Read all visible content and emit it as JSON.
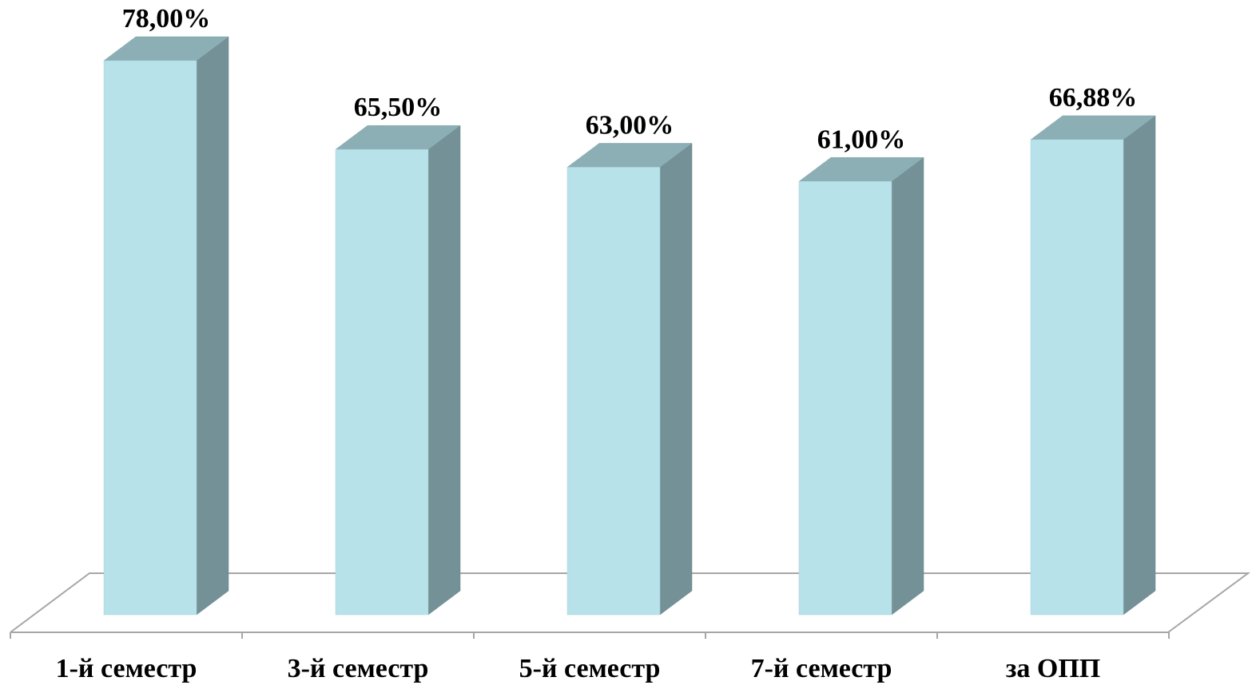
{
  "chart_data": {
    "type": "bar",
    "style": "3d-column",
    "categories": [
      "1-й семестр",
      "3-й семестр",
      "5-й семестр",
      "7-й семестр",
      "за ОПП"
    ],
    "values": [
      78.0,
      65.5,
      63.0,
      61.0,
      66.88
    ],
    "data_labels": [
      "78,00%",
      "65,50%",
      "63,00%",
      "61,00%",
      "66,88%"
    ],
    "unit": "%",
    "title": "",
    "xlabel": "",
    "ylabel": "",
    "ylim": [
      0,
      78
    ],
    "grid": false,
    "legend": "none"
  },
  "colors": {
    "bar_front": "#b8e2ea",
    "bar_side": "#739196",
    "bar_top": "#8cafb5",
    "axis": "#a6a6a6"
  }
}
